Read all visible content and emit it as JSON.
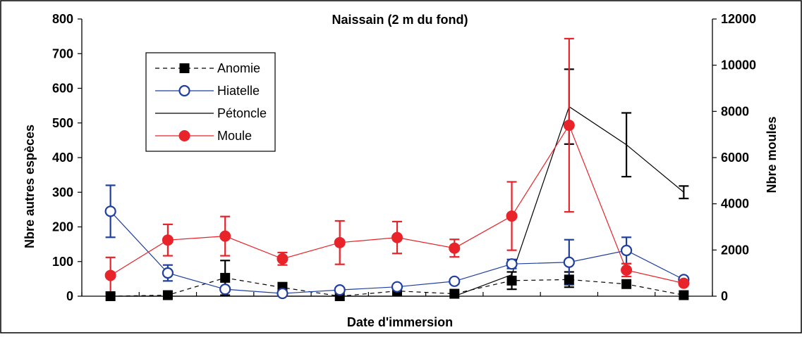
{
  "chart_data": {
    "type": "line",
    "title": "Naissain (2 m du fond)",
    "xlabel": "Date d'immersion",
    "ylabel_left": "Nbre autres espèces",
    "ylabel_right": "Nbre moules",
    "ylim_left": [
      0,
      800
    ],
    "yticks_left": [
      "0",
      "100",
      "200",
      "300",
      "400",
      "500",
      "600",
      "700",
      "800"
    ],
    "ylim_right": [
      0,
      12000
    ],
    "yticks_right": [
      "0",
      "2000",
      "4000",
      "6000",
      "8000",
      "10000",
      "12000"
    ],
    "x_tick_count": 11,
    "x": [
      1,
      2,
      3,
      4,
      5,
      6,
      7,
      8,
      9,
      10,
      11
    ],
    "grid": false,
    "legend_position": "top-left",
    "series": [
      {
        "name": "Anomie",
        "axis": "left",
        "color": "#000000",
        "line_style": "dashed",
        "marker": "filled-square",
        "points": [
          {
            "x": 1,
            "y": 0,
            "err": null
          },
          {
            "x": 2,
            "y": 3,
            "err": null
          },
          {
            "x": 3,
            "y": 53,
            "err": 50
          },
          {
            "x": 4,
            "y": 25,
            "err": 14
          },
          {
            "x": 5,
            "y": 0,
            "err": null
          },
          {
            "x": 6,
            "y": 15,
            "err": 8
          },
          {
            "x": 7,
            "y": 7,
            "err": null
          },
          {
            "x": 8,
            "y": 45,
            "err": 25
          },
          {
            "x": 9,
            "y": 48,
            "err": 22
          },
          {
            "x": 10,
            "y": 35,
            "err": null
          },
          {
            "x": 11,
            "y": 3,
            "err": null
          }
        ]
      },
      {
        "name": "Hiatelle",
        "axis": "left",
        "color": "#1f3f9f",
        "line_style": "solid",
        "marker": "open-circle",
        "points": [
          {
            "x": 1,
            "y": 245,
            "err": 75
          },
          {
            "x": 2,
            "y": 67,
            "err": 23
          },
          {
            "x": 3,
            "y": 20,
            "err": null
          },
          {
            "x": 4,
            "y": 8,
            "err": null
          },
          {
            "x": 5,
            "y": 18,
            "err": null
          },
          {
            "x": 6,
            "y": 27,
            "err": null
          },
          {
            "x": 7,
            "y": 43,
            "err": null
          },
          {
            "x": 8,
            "y": 93,
            "err": 13
          },
          {
            "x": 9,
            "y": 98,
            "err": 65
          },
          {
            "x": 10,
            "y": 132,
            "err": 38
          },
          {
            "x": 11,
            "y": 48,
            "err": null
          }
        ]
      },
      {
        "name": "Pétoncle",
        "axis": "left",
        "color": "#000000",
        "line_style": "solid",
        "marker": "none",
        "points": [
          {
            "x": 1,
            "y": 0,
            "err": null
          },
          {
            "x": 2,
            "y": 0,
            "err": null
          },
          {
            "x": 3,
            "y": 0,
            "err": null
          },
          {
            "x": 4,
            "y": 0,
            "err": null
          },
          {
            "x": 5,
            "y": 0,
            "err": null
          },
          {
            "x": 6,
            "y": 0,
            "err": null
          },
          {
            "x": 7,
            "y": 0,
            "err": null
          },
          {
            "x": 8,
            "y": 62,
            "err": null
          },
          {
            "x": 9,
            "y": 547,
            "err": 108
          },
          {
            "x": 10,
            "y": 437,
            "err": 92
          },
          {
            "x": 11,
            "y": 300,
            "err": 18
          }
        ]
      },
      {
        "name": "Moule",
        "axis": "right",
        "color": "#e8232a",
        "line_style": "solid",
        "marker": "filled-circle",
        "points": [
          {
            "x": 1,
            "y": 900,
            "err": 780
          },
          {
            "x": 2,
            "y": 2430,
            "err": 680
          },
          {
            "x": 3,
            "y": 2600,
            "err": 850
          },
          {
            "x": 4,
            "y": 1620,
            "err": 270
          },
          {
            "x": 5,
            "y": 2320,
            "err": 940
          },
          {
            "x": 6,
            "y": 2540,
            "err": 690
          },
          {
            "x": 7,
            "y": 2080,
            "err": 380
          },
          {
            "x": 8,
            "y": 3470,
            "err": 1480
          },
          {
            "x": 9,
            "y": 7400,
            "err": 3750
          },
          {
            "x": 10,
            "y": 1130,
            "err": 280
          },
          {
            "x": 11,
            "y": 560,
            "err": null
          }
        ]
      }
    ]
  }
}
